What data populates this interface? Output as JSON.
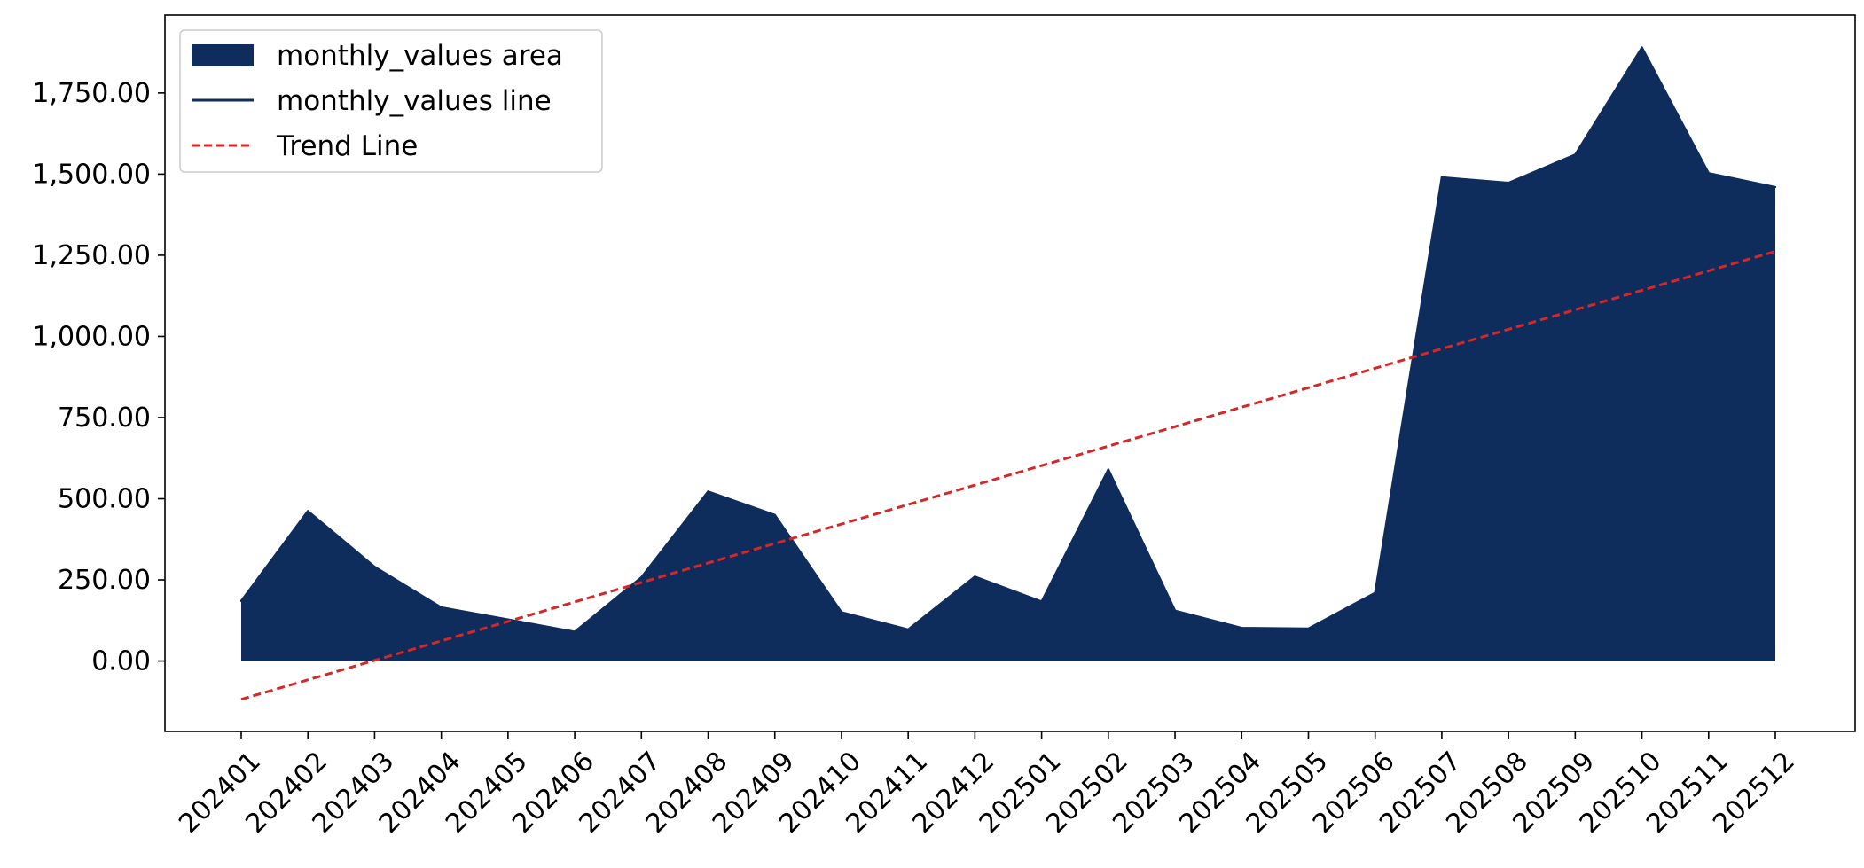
{
  "chart_data": {
    "type": "area",
    "title": "",
    "xlabel": "",
    "ylabel": "",
    "categories": [
      "202401",
      "202402",
      "202403",
      "202404",
      "202405",
      "202406",
      "202407",
      "202408",
      "202409",
      "202410",
      "202411",
      "202412",
      "202501",
      "202502",
      "202503",
      "202504",
      "202505",
      "202506",
      "202507",
      "202508",
      "202509",
      "202510",
      "202511",
      "202512"
    ],
    "series": [
      {
        "name": "monthly_values area",
        "kind": "area",
        "color": "#0f2d5c",
        "values": [
          185,
          462,
          290,
          165,
          128,
          90,
          258,
          522,
          450,
          150,
          97,
          260,
          183,
          590,
          155,
          102,
          100,
          210,
          1490,
          1473,
          1560,
          1890,
          1503,
          1460
        ]
      },
      {
        "name": "monthly_values line",
        "kind": "line",
        "color": "#0f2d5c",
        "values": [
          185,
          462,
          290,
          165,
          128,
          90,
          258,
          522,
          450,
          150,
          97,
          260,
          183,
          590,
          155,
          102,
          100,
          210,
          1490,
          1473,
          1560,
          1890,
          1503,
          1460
        ]
      },
      {
        "name": "Trend Line",
        "kind": "line",
        "style": "dashed",
        "color": "#d62728",
        "start": -118,
        "end": 1262
      }
    ],
    "yticks": [
      0,
      250,
      500,
      750,
      1000,
      1250,
      1500,
      1750
    ],
    "ytick_labels": [
      "0.00",
      "250.00",
      "500.00",
      "750.00",
      "1,000.00",
      "1,250.00",
      "1,500.00",
      "1,750.00"
    ],
    "ylim": [
      -217,
      1990
    ],
    "grid": false,
    "legend": "top-left"
  }
}
